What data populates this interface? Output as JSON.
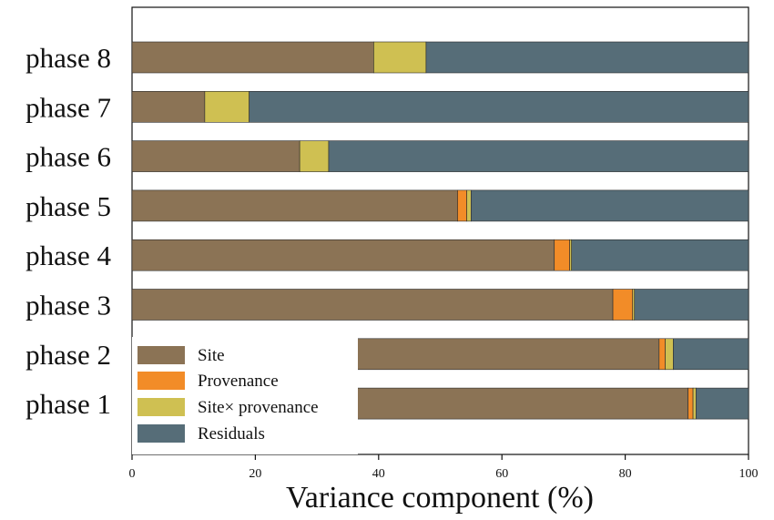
{
  "chart_data": {
    "type": "bar",
    "orientation": "horizontal",
    "stacked": true,
    "title": "",
    "xlabel": "Variance component (%)",
    "ylabel": "",
    "xlim": [
      0,
      100
    ],
    "xticks": [
      0,
      20,
      40,
      60,
      80,
      100
    ],
    "grid": false,
    "legend_position": "bottom-left",
    "categories": [
      "phase 8",
      "phase 7",
      "phase 6",
      "phase 5",
      "phase 4",
      "phase 3",
      "phase 2",
      "phase 1"
    ],
    "series": [
      {
        "name": "Site",
        "color": "#8b7355",
        "values": [
          39.2,
          11.8,
          27.2,
          52.8,
          68.5,
          78.0,
          85.5,
          90.2
        ]
      },
      {
        "name": "Provenance",
        "color": "#f28c28",
        "values": [
          0.0,
          0.0,
          0.0,
          1.5,
          2.5,
          3.2,
          1.0,
          0.8
        ]
      },
      {
        "name": "Site× provenance",
        "color": "#cfc052",
        "values": [
          8.5,
          7.2,
          4.7,
          0.7,
          0.3,
          0.3,
          1.3,
          0.5
        ]
      },
      {
        "name": "Residuals",
        "color": "#566d78",
        "values": [
          52.3,
          81.0,
          68.1,
          45.0,
          28.7,
          18.5,
          12.2,
          8.5
        ]
      }
    ]
  }
}
